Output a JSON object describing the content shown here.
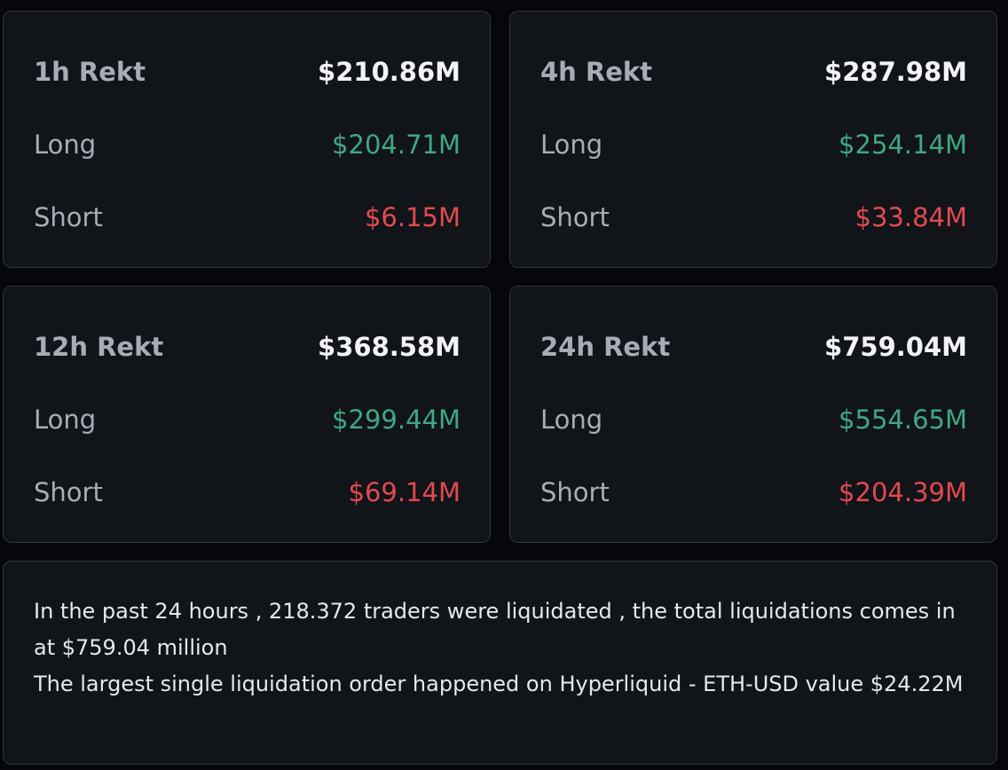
{
  "colors": {
    "background": "#06070a",
    "card": "#111418",
    "border": "#2e333b",
    "long": "#3fa783",
    "short": "#e04a4f",
    "label": "#a8adb5",
    "value": "#f2f3f5"
  },
  "cards": [
    {
      "title": "1h Rekt",
      "total": "$210.86M",
      "long_label": "Long",
      "long": "$204.71M",
      "short_label": "Short",
      "short": "$6.15M"
    },
    {
      "title": "4h Rekt",
      "total": "$287.98M",
      "long_label": "Long",
      "long": "$254.14M",
      "short_label": "Short",
      "short": "$33.84M"
    },
    {
      "title": "12h Rekt",
      "total": "$368.58M",
      "long_label": "Long",
      "long": "$299.44M",
      "short_label": "Short",
      "short": "$69.14M"
    },
    {
      "title": "24h Rekt",
      "total": "$759.04M",
      "long_label": "Long",
      "long": "$554.65M",
      "short_label": "Short",
      "short": "$204.39M"
    }
  ],
  "summary": {
    "line1": "In the past 24 hours , 218.372 traders were liquidated , the total liquidations comes in at $759.04 million",
    "line2": "The largest single liquidation order happened on Hyperliquid - ETH-USD value $24.22M"
  }
}
